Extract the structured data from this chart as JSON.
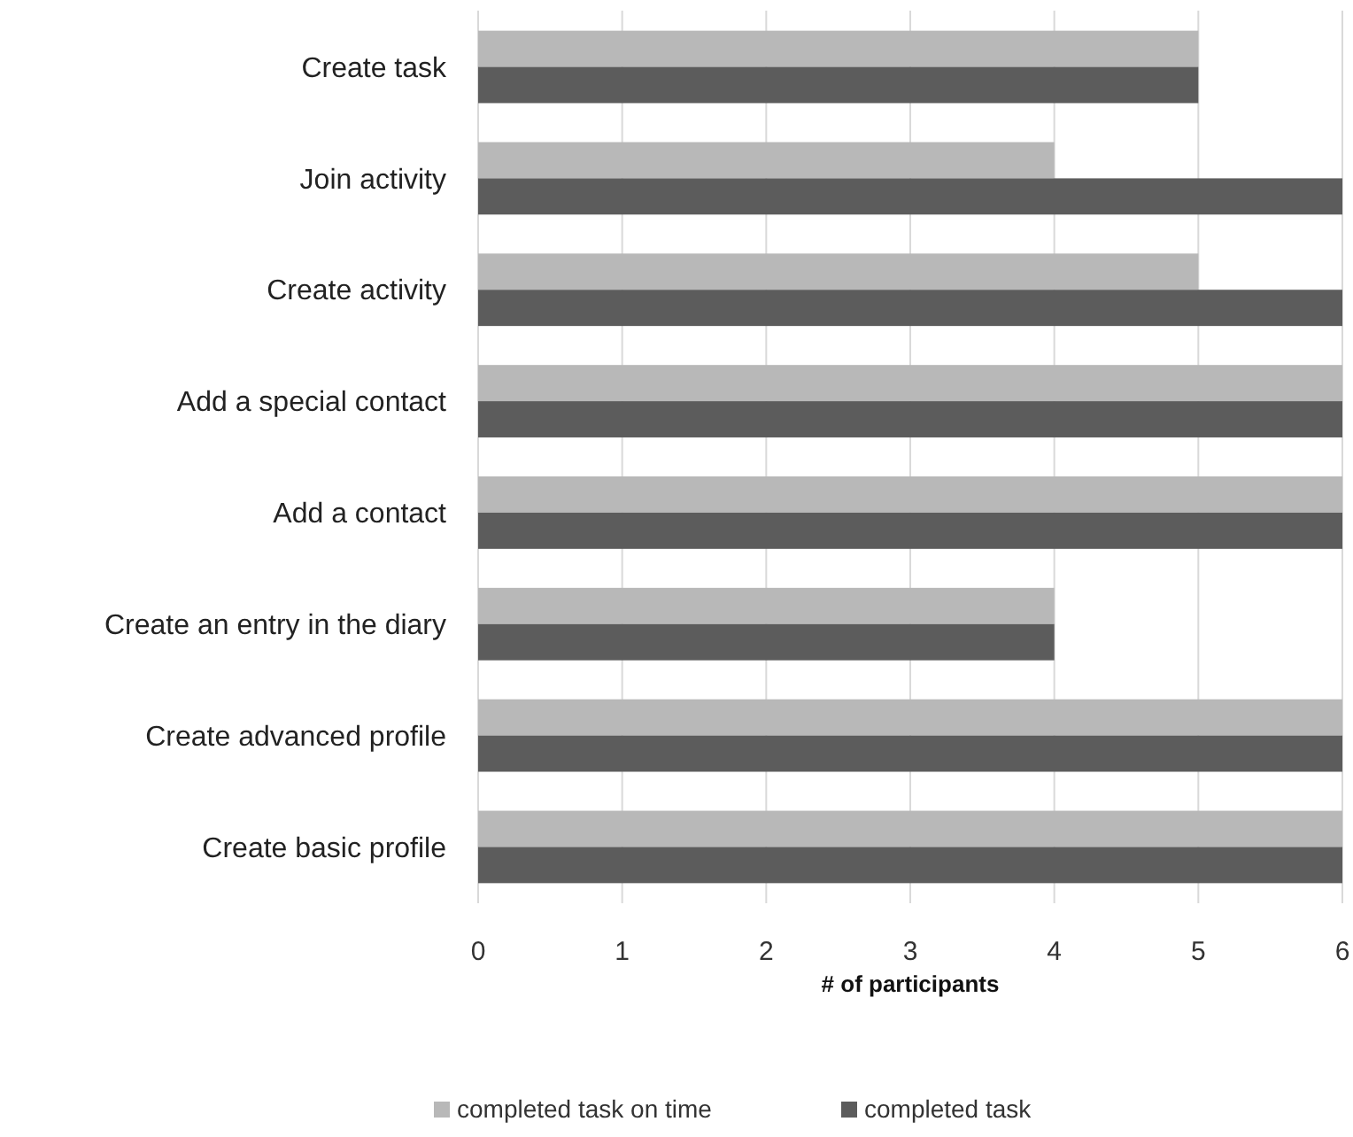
{
  "chart_data": {
    "type": "bar",
    "orientation": "horizontal",
    "xlabel": "# of participants",
    "categories": [
      "Create task",
      "Join activity",
      "Create activity",
      "Add a special contact",
      "Add a contact",
      "Create an entry in the diary",
      "Create advanced profile",
      "Create basic profile"
    ],
    "series": [
      {
        "name": "completed task on time",
        "color": "#b8b8b8",
        "values": [
          5,
          4,
          5,
          6,
          6,
          4,
          6,
          6
        ]
      },
      {
        "name": "completed task",
        "color": "#5c5c5c",
        "values": [
          5,
          6,
          6,
          6,
          6,
          4,
          6,
          6
        ]
      }
    ],
    "xlim": [
      0,
      6
    ],
    "xticks": [
      0,
      1,
      2,
      3,
      4,
      5,
      6
    ],
    "grid": "x",
    "legend": "bottom"
  }
}
